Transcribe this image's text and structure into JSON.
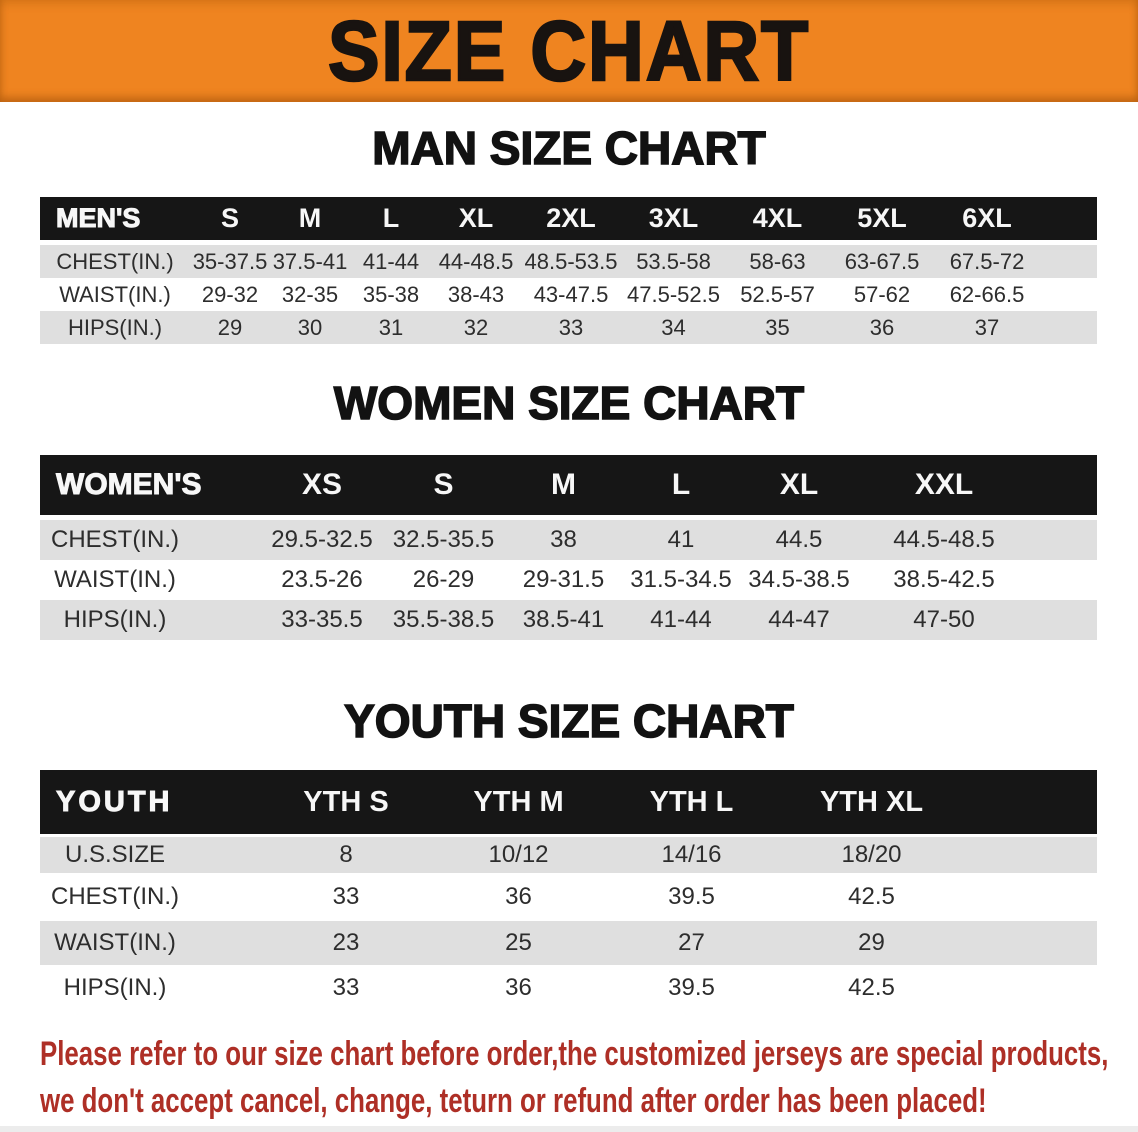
{
  "banner": {
    "title": "SIZE CHART"
  },
  "colors": {
    "banner_bg": "#ef8420",
    "header_bar_bg": "#161616",
    "row_shade": "#dfdfdf",
    "note_text": "#ae2f26"
  },
  "tables": [
    {
      "key": "men",
      "heading": "MAN SIZE CHART",
      "corner_label": "MEN'S",
      "columns": [
        "S",
        "M",
        "L",
        "XL",
        "2XL",
        "3XL",
        "4XL",
        "5XL",
        "6XL"
      ],
      "rows": [
        {
          "label": "CHEST(IN.)",
          "values": [
            "35-37.5",
            "37.5-41",
            "41-44",
            "44-48.5",
            "48.5-53.5",
            "53.5-58",
            "58-63",
            "63-67.5",
            "67.5-72"
          ]
        },
        {
          "label": "WAIST(IN.)",
          "values": [
            "29-32",
            "32-35",
            "35-38",
            "38-43",
            "43-47.5",
            "47.5-52.5",
            "52.5-57",
            "57-62",
            "62-66.5"
          ]
        },
        {
          "label": "HIPS(IN.)",
          "values": [
            "29",
            "30",
            "31",
            "32",
            "33",
            "34",
            "35",
            "36",
            "37"
          ]
        }
      ]
    },
    {
      "key": "women",
      "heading": "WOMEN SIZE CHART",
      "corner_label": "WOMEN'S",
      "columns": [
        "XS",
        "S",
        "M",
        "L",
        "XL",
        "XXL"
      ],
      "rows": [
        {
          "label": "CHEST(IN.)",
          "values": [
            "29.5-32.5",
            "32.5-35.5",
            "38",
            "41",
            "44.5",
            "44.5-48.5"
          ]
        },
        {
          "label": "WAIST(IN.)",
          "values": [
            "23.5-26",
            "26-29",
            "29-31.5",
            "31.5-34.5",
            "34.5-38.5",
            "38.5-42.5"
          ]
        },
        {
          "label": "HIPS(IN.)",
          "values": [
            "33-35.5",
            "35.5-38.5",
            "38.5-41",
            "41-44",
            "44-47",
            "47-50"
          ]
        }
      ]
    },
    {
      "key": "youth",
      "heading": "YOUTH SIZE CHART",
      "corner_label": "YOUTH",
      "columns": [
        "YTH S",
        "YTH M",
        "YTH L",
        "YTH XL"
      ],
      "rows": [
        {
          "label": "U.S.SIZE",
          "values": [
            "8",
            "10/12",
            "14/16",
            "18/20"
          ]
        },
        {
          "label": "CHEST(IN.)",
          "values": [
            "33",
            "36",
            "39.5",
            "42.5"
          ]
        },
        {
          "label": "WAIST(IN.)",
          "values": [
            "23",
            "25",
            "27",
            "29"
          ]
        },
        {
          "label": "HIPS(IN.)",
          "values": [
            "33",
            "36",
            "39.5",
            "42.5"
          ]
        }
      ]
    }
  ],
  "footer": {
    "line1": "Please refer to our size chart before order,the customized jerseys are special products,",
    "line2": "we don't accept cancel, change, teturn or refund after order has been placed!"
  }
}
